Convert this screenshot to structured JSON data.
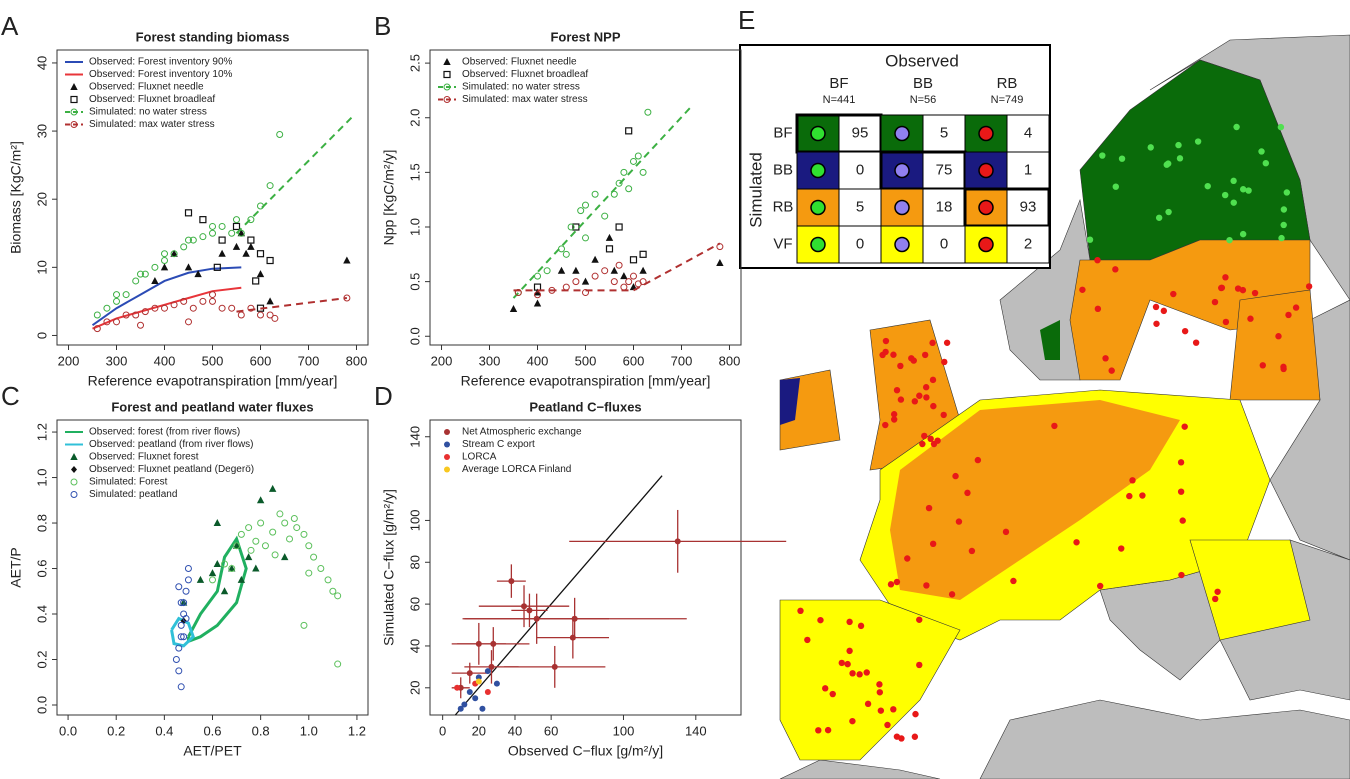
{
  "chart_data": [
    {
      "panel": "A",
      "type": "scatter",
      "title": "Forest standing biomass",
      "x_label": "Reference evapotranspiration [mm/year]",
      "y_label": "Biomass [KgC/m²]",
      "xlim": [
        176,
        824
      ],
      "ylim": [
        -1.4,
        41.9
      ],
      "xticks": [
        200,
        300,
        400,
        500,
        600,
        700,
        800
      ],
      "yticks": [
        0,
        10,
        20,
        30,
        40
      ],
      "legend": "upper left",
      "series": [
        {
          "name": "Observed: Forest inventory 90%",
          "color": "#2b4bb5",
          "line": "solid",
          "marker": null,
          "x": [
            250,
            300,
            350,
            400,
            450,
            500,
            560
          ],
          "y": [
            1.5,
            4,
            6,
            8,
            9.2,
            9.8,
            10
          ]
        },
        {
          "name": "Observed: Forest inventory 10%",
          "color": "#e8353a",
          "line": "solid",
          "marker": null,
          "x": [
            250,
            300,
            350,
            400,
            450,
            500,
            560
          ],
          "y": [
            1,
            2.5,
            3.5,
            4.5,
            5.5,
            6.5,
            7
          ]
        },
        {
          "name": "Observed: Fluxnet needle",
          "color": "#111111",
          "line": null,
          "marker": "triangle",
          "x": [
            380,
            400,
            420,
            450,
            470,
            520,
            550,
            570,
            580,
            600,
            620,
            780,
            560
          ],
          "y": [
            8,
            10,
            12,
            10,
            9,
            12,
            13,
            12,
            13,
            9,
            5,
            11,
            15
          ]
        },
        {
          "name": "Observed: Fluxnet broadleaf",
          "color": "#111111",
          "line": null,
          "marker": "square",
          "x": [
            450,
            480,
            520,
            550,
            580,
            600,
            620,
            590,
            510,
            600
          ],
          "y": [
            18,
            17,
            14,
            16,
            14,
            12,
            11,
            8,
            10,
            4
          ]
        },
        {
          "name": "Simulated: no water stress",
          "color": "#3cb043",
          "line": null,
          "marker": "circle",
          "x": [
            260,
            280,
            300,
            320,
            340,
            360,
            380,
            400,
            420,
            440,
            460,
            480,
            500,
            520,
            540,
            560,
            580,
            600,
            620,
            300,
            350,
            400,
            450,
            500,
            550,
            640
          ],
          "y": [
            3,
            4,
            5,
            6,
            8,
            9,
            10,
            11,
            12,
            13,
            14,
            14.5,
            15,
            16,
            15,
            15,
            17,
            19,
            22,
            6,
            9,
            12,
            14,
            16,
            17,
            29.5
          ],
          "line_x": [
            550,
            790
          ],
          "line_y": [
            15,
            32
          ],
          "line_style": "dashed"
        },
        {
          "name": "Simulated: max water stress",
          "color": "#b03030",
          "line": null,
          "marker": "circle",
          "x": [
            260,
            280,
            300,
            320,
            340,
            360,
            380,
            400,
            420,
            440,
            460,
            480,
            500,
            520,
            540,
            560,
            580,
            600,
            620,
            630,
            350,
            450,
            500,
            780
          ],
          "y": [
            1,
            2,
            2,
            3,
            3,
            3.5,
            4,
            4,
            4.5,
            5,
            4,
            5,
            5,
            4,
            4,
            3,
            4,
            3,
            3,
            2.5,
            1.5,
            2,
            6,
            5.5
          ],
          "line_x": [
            550,
            780
          ],
          "line_y": [
            3.5,
            5.5
          ],
          "line_style": "dashed"
        }
      ]
    },
    {
      "panel": "B",
      "type": "scatter",
      "title": "Forest NPP",
      "x_label": "Reference evapotranspiration [mm/year]",
      "y_label": "Npp [KgC/m²/y]",
      "xlim": [
        176,
        824
      ],
      "ylim": [
        -0.08,
        2.62
      ],
      "xticks": [
        200,
        300,
        400,
        500,
        600,
        700,
        800
      ],
      "yticks": [
        {
          "value": 0,
          "label": "0.0"
        },
        0.5,
        {
          "value": 1,
          "label": "1.0"
        },
        1.5,
        {
          "value": 2,
          "label": "2.0"
        },
        2.5
      ],
      "legend": "upper left",
      "series": [
        {
          "name": "Observed: Fluxnet needle",
          "color": "#111111",
          "line": null,
          "marker": "triangle",
          "x": [
            350,
            400,
            400,
            450,
            480,
            500,
            520,
            550,
            560,
            580,
            600,
            620,
            780
          ],
          "y": [
            0.25,
            0.3,
            0.4,
            0.6,
            0.6,
            0.5,
            0.7,
            0.9,
            0.6,
            0.55,
            0.45,
            0.6,
            0.67
          ]
        },
        {
          "name": "Observed: Fluxnet broadleaf",
          "color": "#111111",
          "line": null,
          "marker": "square",
          "x": [
            400,
            480,
            550,
            570,
            590,
            600,
            620
          ],
          "y": [
            0.45,
            1.0,
            0.8,
            1.0,
            1.88,
            0.7,
            0.75
          ]
        },
        {
          "name": "Simulated: no water stress",
          "color": "#3cb043",
          "line": null,
          "marker": "circle",
          "x": [
            360,
            400,
            420,
            450,
            470,
            490,
            500,
            520,
            540,
            560,
            570,
            580,
            590,
            600,
            610,
            620,
            630,
            500,
            460
          ],
          "y": [
            0.4,
            0.55,
            0.6,
            0.8,
            1.0,
            1.15,
            1.2,
            1.3,
            1.1,
            1.3,
            1.4,
            1.5,
            1.35,
            1.6,
            1.65,
            1.5,
            2.05,
            0.9,
            0.75
          ],
          "line_x": [
            350,
            720
          ],
          "line_y": [
            0.35,
            2.1
          ],
          "line_style": "dashed"
        },
        {
          "name": "Simulated: max water stress",
          "color": "#b03030",
          "line": null,
          "marker": "circle",
          "x": [
            360,
            400,
            430,
            460,
            480,
            500,
            520,
            540,
            560,
            570,
            580,
            590,
            600,
            610,
            620,
            780
          ],
          "y": [
            0.4,
            0.38,
            0.42,
            0.45,
            0.5,
            0.4,
            0.55,
            0.6,
            0.5,
            0.65,
            0.45,
            0.5,
            0.55,
            0.48,
            0.5,
            0.82
          ],
          "line_x": [
            350,
            600,
            780
          ],
          "line_y": [
            0.42,
            0.42,
            0.85
          ],
          "line_style": "dashed"
        }
      ]
    },
    {
      "panel": "C",
      "type": "scatter",
      "title": "Forest and peatland water fluxes",
      "x_label": "AET/PET",
      "y_label": "AET/P",
      "xlim": [
        -0.046,
        1.246
      ],
      "ylim": [
        -0.044,
        1.253
      ],
      "xticks": [
        {
          "value": 0,
          "label": "0.0"
        },
        0.2,
        0.4,
        0.6,
        0.8,
        {
          "value": 1,
          "label": "1.0"
        },
        1.2
      ],
      "yticks": [
        {
          "value": 0,
          "label": "0.0"
        },
        0.2,
        0.4,
        0.6,
        0.8,
        {
          "value": 1,
          "label": "1.0"
        },
        1.2
      ],
      "legend": "upper left",
      "series": [
        {
          "name": "Observed: forest (from river flows)",
          "color": "#20b060",
          "line": "solid",
          "marker": null,
          "x": [
            0.5,
            0.55,
            0.62,
            0.65,
            0.7,
            0.74,
            0.7,
            0.62,
            0.55,
            0.5,
            0.5
          ],
          "y": [
            0.3,
            0.4,
            0.5,
            0.65,
            0.73,
            0.6,
            0.45,
            0.35,
            0.3,
            0.28,
            0.3
          ]
        },
        {
          "name": "Observed: peatland (from river flows)",
          "color": "#30c0d8",
          "line": "solid",
          "marker": null,
          "x": [
            0.43,
            0.46,
            0.5,
            0.52,
            0.48,
            0.44,
            0.43
          ],
          "y": [
            0.33,
            0.38,
            0.36,
            0.3,
            0.26,
            0.27,
            0.33
          ]
        },
        {
          "name": "Observed: Fluxnet forest",
          "color": "#0a5a2a",
          "line": null,
          "marker": "triangle",
          "x": [
            0.48,
            0.55,
            0.6,
            0.62,
            0.65,
            0.68,
            0.7,
            0.72,
            0.75,
            0.78,
            0.8,
            0.85,
            0.9,
            0.62
          ],
          "y": [
            0.45,
            0.55,
            0.58,
            0.62,
            0.5,
            0.6,
            0.7,
            0.55,
            0.65,
            0.6,
            0.9,
            0.95,
            0.65,
            0.8
          ]
        },
        {
          "name": "Observed: Fluxnet peatland (Degerö)",
          "color": "#111111",
          "line": null,
          "marker": "diamond",
          "x": [
            0.48
          ],
          "y": [
            0.37
          ]
        },
        {
          "name": "Simulated: Forest",
          "color": "#5cc05c",
          "line": null,
          "marker": "circle",
          "x": [
            0.6,
            0.65,
            0.7,
            0.72,
            0.75,
            0.78,
            0.8,
            0.82,
            0.85,
            0.88,
            0.9,
            0.92,
            0.95,
            0.98,
            1.0,
            1.02,
            1.05,
            1.08,
            1.1,
            1.12,
            0.68,
            0.76,
            0.86,
            0.94,
            1.0,
            1.12,
            0.98
          ],
          "y": [
            0.55,
            0.62,
            0.7,
            0.75,
            0.78,
            0.72,
            0.8,
            0.7,
            0.76,
            0.84,
            0.8,
            0.73,
            0.78,
            0.75,
            0.7,
            0.65,
            0.6,
            0.55,
            0.5,
            0.18,
            0.6,
            0.68,
            0.66,
            0.82,
            0.58,
            0.48,
            0.35
          ]
        },
        {
          "name": "Simulated: peatland",
          "color": "#3050b0",
          "line": null,
          "marker": "circle",
          "x": [
            0.45,
            0.46,
            0.47,
            0.47,
            0.48,
            0.48,
            0.49,
            0.5,
            0.5,
            0.46,
            0.47,
            0.48,
            0.49,
            0.47,
            0.46
          ],
          "y": [
            0.2,
            0.25,
            0.3,
            0.35,
            0.4,
            0.45,
            0.5,
            0.55,
            0.6,
            0.15,
            0.45,
            0.3,
            0.38,
            0.08,
            0.52
          ]
        }
      ]
    },
    {
      "panel": "D",
      "type": "scatter",
      "title": "Peatland C−fluxes",
      "x_label": "Observed C−flux [g/m²/y]",
      "y_label": "Simulated C−flux [g/m²/y]",
      "xlim": [
        -7,
        165
      ],
      "ylim": [
        7,
        148
      ],
      "xticks": [
        0,
        20,
        40,
        60,
        100,
        140
      ],
      "yticks": [
        20,
        40,
        60,
        80,
        100,
        140
      ],
      "legend": "upper left",
      "identity_line": true,
      "series": [
        {
          "name": "Net Atmospheric exchange",
          "color": "#a83232",
          "line": null,
          "marker": "dot",
          "x": [
            130,
            38,
            45,
            48,
            52,
            72,
            73,
            62,
            28,
            20,
            27,
            15,
            10
          ],
          "y": [
            90,
            71,
            59,
            57,
            53,
            44,
            53,
            30,
            41,
            41,
            30,
            27,
            20
          ],
          "xerr": [
            60,
            8,
            25,
            10,
            40,
            20,
            62,
            28,
            20,
            15,
            15,
            10,
            5
          ],
          "yerr": [
            15,
            8,
            10,
            8,
            12,
            10,
            10,
            10,
            8,
            10,
            8,
            5,
            5
          ]
        },
        {
          "name": "Stream C export",
          "color": "#3050a0",
          "line": null,
          "marker": "dot",
          "x": [
            20,
            25,
            15,
            18,
            12,
            22,
            30,
            10
          ],
          "y": [
            25,
            28,
            18,
            15,
            12,
            10,
            22,
            10
          ]
        },
        {
          "name": "LORCA",
          "color": "#e83030",
          "line": null,
          "marker": "dot",
          "x": [
            8,
            18,
            25
          ],
          "y": [
            20,
            22,
            18
          ]
        },
        {
          "name": "Average LORCA Finland",
          "color": "#f8c820",
          "line": null,
          "marker": "dot",
          "x": [
            20
          ],
          "y": [
            23
          ]
        }
      ]
    }
  ],
  "panel_e": {
    "panel": "E",
    "table": {
      "title": "Observed",
      "row_title": "Simulated",
      "columns": [
        {
          "name": "BF",
          "n": "N=441",
          "color": "#30e030"
        },
        {
          "name": "BB",
          "n": "N=56",
          "color": "#9080f0"
        },
        {
          "name": "RB",
          "n": "N=749",
          "color": "#e81818"
        }
      ],
      "rows": [
        {
          "name": "BF",
          "color": "#0a6b0a",
          "values": [
            95,
            5,
            4
          ]
        },
        {
          "name": "BB",
          "color": "#1a1a80",
          "values": [
            0,
            75,
            1
          ]
        },
        {
          "name": "RB",
          "color": "#f59a10",
          "values": [
            5,
            18,
            93
          ]
        },
        {
          "name": "VF",
          "color": "#ffff00",
          "values": [
            0,
            0,
            2
          ]
        }
      ]
    }
  }
}
